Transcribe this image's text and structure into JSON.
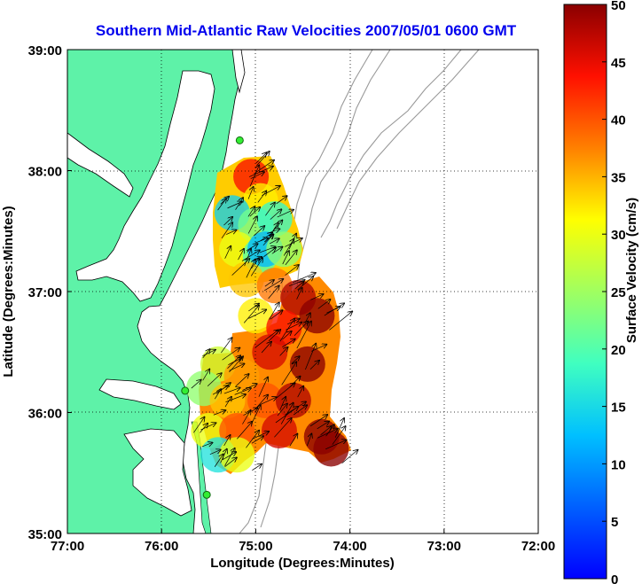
{
  "chart_data": {
    "type": "heatmap",
    "title": "Southern Mid-Atlantic Raw Velocities 2007/05/01 0600 GMT",
    "xlabel": "Longitude (Degrees:Minutes)",
    "ylabel": "Latitude (Degrees:Minutes)",
    "xlim": [
      -77,
      -72
    ],
    "ylim": [
      35,
      39
    ],
    "x_ticks": [
      {
        "value": -77,
        "label": "77:00"
      },
      {
        "value": -76,
        "label": "76:00"
      },
      {
        "value": -75,
        "label": "75:00"
      },
      {
        "value": -74,
        "label": "74:00"
      },
      {
        "value": -73,
        "label": "73:00"
      },
      {
        "value": -72,
        "label": "72:00"
      }
    ],
    "y_ticks": [
      {
        "value": 35,
        "label": "35:00"
      },
      {
        "value": 36,
        "label": "36:00"
      },
      {
        "value": 37,
        "label": "37:00"
      },
      {
        "value": 38,
        "label": "38:00"
      },
      {
        "value": 39,
        "label": "39:00"
      }
    ],
    "grid": "dotted",
    "colorbar": {
      "label": "Surface Velocity (cm/s)",
      "range": [
        0,
        50
      ],
      "ticks": [
        0,
        5,
        10,
        15,
        20,
        25,
        30,
        35,
        40,
        45,
        50
      ],
      "colormap": "jet",
      "placement": "right"
    },
    "stations": [
      {
        "lon": -75.17,
        "lat": 38.25
      },
      {
        "lon": -75.75,
        "lat": 36.18
      },
      {
        "lon": -75.52,
        "lat": 35.32
      }
    ],
    "velocity_samples": [
      {
        "lon": -75.05,
        "lat": 37.95,
        "speed": 44
      },
      {
        "lon": -74.95,
        "lat": 37.75,
        "speed": 32
      },
      {
        "lon": -75.25,
        "lat": 37.65,
        "speed": 14
      },
      {
        "lon": -75.0,
        "lat": 37.55,
        "speed": 22
      },
      {
        "lon": -74.8,
        "lat": 37.6,
        "speed": 18
      },
      {
        "lon": -75.2,
        "lat": 37.35,
        "speed": 30
      },
      {
        "lon": -74.95,
        "lat": 37.3,
        "speed": 20
      },
      {
        "lon": -74.9,
        "lat": 37.35,
        "speed": 12
      },
      {
        "lon": -74.7,
        "lat": 37.35,
        "speed": 24
      },
      {
        "lon": -75.1,
        "lat": 37.1,
        "speed": 34
      },
      {
        "lon": -74.8,
        "lat": 37.05,
        "speed": 38
      },
      {
        "lon": -74.55,
        "lat": 36.95,
        "speed": 48
      },
      {
        "lon": -74.35,
        "lat": 36.8,
        "speed": 50
      },
      {
        "lon": -75.0,
        "lat": 36.8,
        "speed": 32
      },
      {
        "lon": -74.7,
        "lat": 36.7,
        "speed": 44
      },
      {
        "lon": -74.85,
        "lat": 36.5,
        "speed": 46
      },
      {
        "lon": -74.45,
        "lat": 36.4,
        "speed": 50
      },
      {
        "lon": -75.4,
        "lat": 36.4,
        "speed": 28
      },
      {
        "lon": -75.15,
        "lat": 36.3,
        "speed": 36
      },
      {
        "lon": -75.55,
        "lat": 36.2,
        "speed": 24
      },
      {
        "lon": -75.3,
        "lat": 36.1,
        "speed": 34
      },
      {
        "lon": -74.9,
        "lat": 36.1,
        "speed": 40
      },
      {
        "lon": -74.6,
        "lat": 36.1,
        "speed": 48
      },
      {
        "lon": -75.5,
        "lat": 35.85,
        "speed": 30
      },
      {
        "lon": -75.2,
        "lat": 35.85,
        "speed": 40
      },
      {
        "lon": -74.75,
        "lat": 35.85,
        "speed": 46
      },
      {
        "lon": -74.3,
        "lat": 35.8,
        "speed": 50
      },
      {
        "lon": -74.2,
        "lat": 35.7,
        "speed": 50
      },
      {
        "lon": -75.4,
        "lat": 35.65,
        "speed": 16
      },
      {
        "lon": -75.2,
        "lat": 35.65,
        "speed": 30
      }
    ]
  }
}
